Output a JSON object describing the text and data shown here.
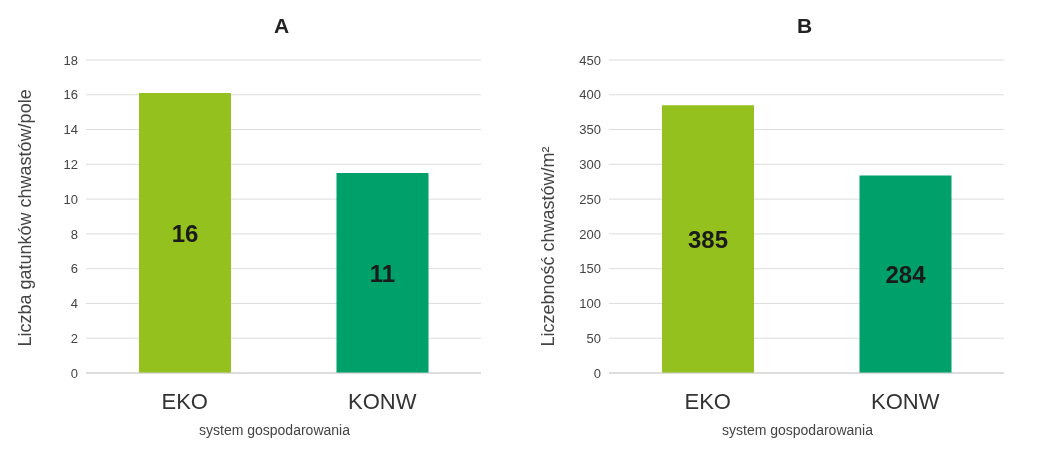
{
  "chart_data": [
    {
      "type": "bar",
      "title": "A",
      "categories": [
        "EKO",
        "KONW"
      ],
      "values": [
        16.1,
        11.5
      ],
      "colors": [
        "#95c11f",
        "#00a06b"
      ],
      "value_labels": [
        "16",
        "11"
      ],
      "xlabel": "system gospodarowania",
      "ylabel": "Liczba gatunków chwastów/pole",
      "ylim": [
        0,
        18
      ],
      "yticks": [
        0,
        2,
        4,
        6,
        8,
        10,
        12,
        14,
        16,
        18
      ],
      "grid": "y"
    },
    {
      "type": "bar",
      "title": "B",
      "categories": [
        "EKO",
        "KONW"
      ],
      "values": [
        385,
        284
      ],
      "colors": [
        "#95c11f",
        "#00a06b"
      ],
      "value_labels": [
        "385",
        "284"
      ],
      "xlabel": "system gospodarowania",
      "ylabel": "Liczebność chwastów/m²",
      "ylim": [
        0,
        450
      ],
      "yticks": [
        0,
        50,
        100,
        150,
        200,
        250,
        300,
        350,
        400,
        450
      ],
      "grid": "y"
    }
  ]
}
